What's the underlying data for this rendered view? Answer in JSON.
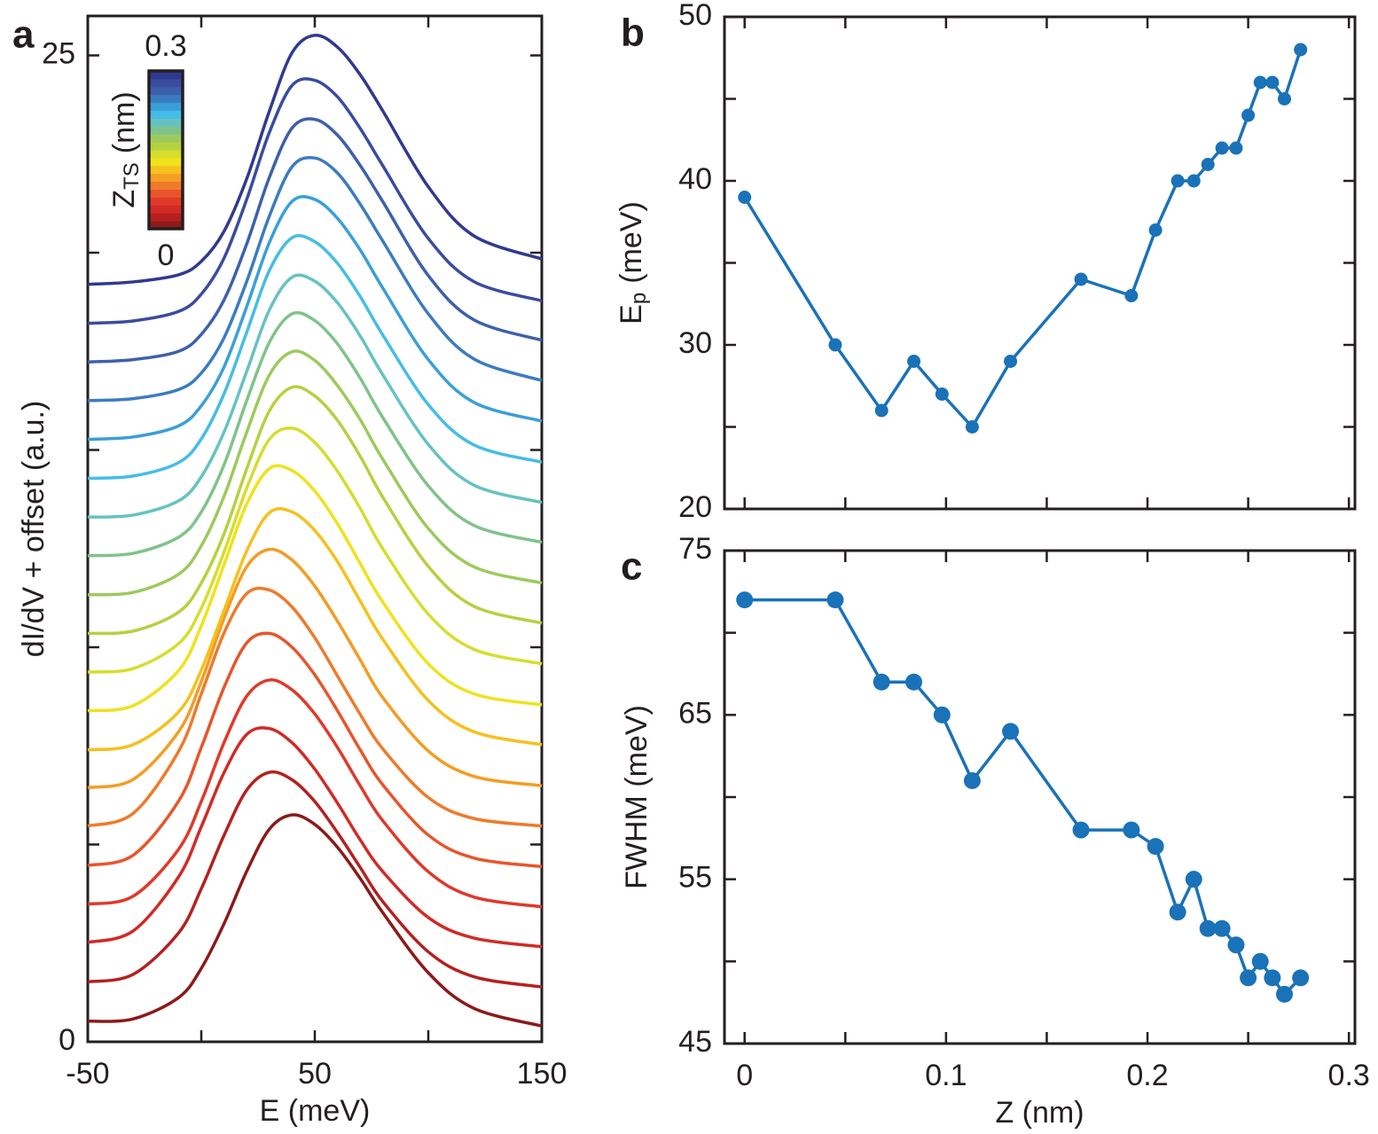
{
  "chart_data": [
    {
      "type": "line",
      "panel_label": "a",
      "xlabel": "E (meV)",
      "ylabel": {
        "text": "dI/dV + offset (a.u.)"
      },
      "x": [
        -50,
        -30,
        -10,
        0,
        10,
        20,
        30,
        40,
        50,
        60,
        70,
        80,
        100,
        120,
        150
      ],
      "xlim": [
        -50,
        150
      ],
      "xticks": [
        -50,
        50,
        150
      ],
      "xtick_marks": [
        0,
        100
      ],
      "ylim": [
        0,
        26
      ],
      "yticks": [
        0,
        25
      ],
      "ytick_marks": [
        5,
        10,
        15,
        20
      ],
      "colorbar": {
        "lim": [
          0,
          0.3
        ],
        "ticks": [
          0,
          0.3
        ],
        "title": {
          "text": "Z",
          "sub": "TS",
          "rest": "(nm)"
        }
      },
      "series": [
        {
          "color": "#8c1a1a",
          "values": [
            0.52,
            0.58,
            1.12,
            1.86,
            2.99,
            4.32,
            5.39,
            5.75,
            5.51,
            4.93,
            4.14,
            3.27,
            1.75,
            0.85,
            0.4
          ]
        },
        {
          "color": "#b5201f",
          "values": [
            1.52,
            1.71,
            2.76,
            3.88,
            5.23,
            6.38,
            6.83,
            6.64,
            6.09,
            5.3,
            4.42,
            3.55,
            2.28,
            1.65,
            1.39
          ]
        },
        {
          "color": "#d22a26",
          "values": [
            2.52,
            2.81,
            4.18,
            5.45,
            6.82,
            7.79,
            7.94,
            7.58,
            6.91,
            6.05,
            5.12,
            4.31,
            3.15,
            2.63,
            2.41
          ]
        },
        {
          "color": "#e0392a",
          "values": [
            3.49,
            3.69,
            4.88,
            6.09,
            7.58,
            8.76,
            9.17,
            8.92,
            8.31,
            7.46,
            6.49,
            5.6,
            4.31,
            3.67,
            3.42
          ]
        },
        {
          "color": "#e8552a",
          "values": [
            4.47,
            4.73,
            6.1,
            7.46,
            8.98,
            10.11,
            10.35,
            10.0,
            9.3,
            8.39,
            7.4,
            6.51,
            5.24,
            4.66,
            4.44
          ]
        },
        {
          "color": "#ef7a2a",
          "values": [
            5.47,
            5.79,
            7.36,
            8.82,
            10.36,
            11.36,
            11.45,
            11.02,
            10.24,
            9.27,
            8.3,
            7.42,
            6.19,
            5.66,
            5.47
          ]
        },
        {
          "color": "#f59c22",
          "values": [
            6.44,
            6.65,
            7.86,
            9.13,
            10.73,
            12.04,
            12.48,
            12.21,
            11.55,
            10.66,
            9.68,
            8.72,
            7.37,
            6.73,
            6.49
          ]
        },
        {
          "color": "#f5c11e",
          "values": [
            7.4,
            7.53,
            8.36,
            9.42,
            10.93,
            12.44,
            13.41,
            13.43,
            12.96,
            12.17,
            11.17,
            10.2,
            8.65,
            7.86,
            7.53
          ]
        },
        {
          "color": "#f0e21c",
          "values": [
            8.39,
            8.52,
            9.41,
            10.54,
            12.09,
            13.63,
            14.53,
            14.48,
            13.96,
            13.13,
            12.12,
            11.14,
            9.58,
            8.82,
            8.54
          ]
        },
        {
          "color": "#d6dd2e",
          "values": [
            9.37,
            9.46,
            10.09,
            10.99,
            12.41,
            14.03,
            15.27,
            15.55,
            15.19,
            14.46,
            13.52,
            12.49,
            10.84,
            9.95,
            9.58
          ]
        },
        {
          "color": "#b5d13f",
          "values": [
            10.35,
            10.41,
            10.89,
            11.63,
            12.87,
            14.52,
            15.99,
            16.59,
            16.37,
            15.75,
            14.84,
            13.8,
            12.05,
            11.04,
            10.61
          ]
        },
        {
          "color": "#9cca5c",
          "values": [
            11.33,
            11.39,
            11.85,
            12.57,
            13.82,
            15.45,
            16.9,
            17.49,
            17.27,
            16.63,
            15.77,
            14.76,
            13.01,
            12.04,
            11.63
          ]
        },
        {
          "color": "#7fc38a",
          "values": [
            12.32,
            12.38,
            12.79,
            13.43,
            14.62,
            16.25,
            17.73,
            18.45,
            18.28,
            17.69,
            16.82,
            15.82,
            14.09,
            13.09,
            12.66
          ]
        },
        {
          "color": "#66c2c2",
          "values": [
            13.3,
            13.35,
            13.71,
            14.32,
            15.45,
            16.99,
            18.55,
            19.38,
            19.28,
            18.73,
            17.89,
            16.9,
            15.14,
            14.11,
            13.67
          ]
        },
        {
          "color": "#45bde6",
          "values": [
            14.28,
            14.34,
            14.68,
            15.28,
            16.42,
            17.98,
            19.55,
            20.38,
            20.28,
            19.73,
            18.89,
            17.91,
            16.15,
            15.13,
            14.69
          ]
        },
        {
          "color": "#3a9fd8",
          "values": [
            15.27,
            15.33,
            15.61,
            16.12,
            17.1,
            18.63,
            20.26,
            21.3,
            21.35,
            20.87,
            20.07,
            19.1,
            17.29,
            16.21,
            15.73
          ]
        },
        {
          "color": "#3b7cc0",
          "values": [
            16.25,
            16.3,
            16.53,
            16.95,
            17.84,
            19.27,
            20.93,
            22.18,
            22.4,
            22.02,
            21.23,
            20.29,
            18.45,
            17.31,
            16.76
          ]
        },
        {
          "color": "#3d60ac",
          "values": [
            17.23,
            17.29,
            17.5,
            17.93,
            18.8,
            20.22,
            21.91,
            23.16,
            23.38,
            22.98,
            22.21,
            21.29,
            19.42,
            18.3,
            17.78
          ]
        },
        {
          "color": "#3a4c9f",
          "values": [
            18.21,
            18.27,
            18.51,
            18.95,
            19.86,
            21.35,
            23.05,
            24.24,
            24.37,
            23.95,
            23.15,
            22.2,
            20.36,
            19.27,
            18.78
          ]
        },
        {
          "color": "#2f3a8f",
          "values": [
            19.2,
            19.26,
            19.44,
            19.78,
            20.54,
            21.87,
            23.59,
            25.07,
            25.51,
            25.21,
            24.51,
            23.59,
            21.67,
            20.43,
            19.84
          ]
        }
      ]
    },
    {
      "type": "line",
      "panel_label": "b",
      "markers": true,
      "color": "#1a72b8",
      "ylabel": {
        "text": "E",
        "sub": "p",
        "rest": "(meV)"
      },
      "x": [
        0,
        0.045,
        0.068,
        0.084,
        0.098,
        0.113,
        0.132,
        0.167,
        0.192,
        0.204,
        0.215,
        0.223,
        0.23,
        0.237,
        0.244,
        0.25,
        0.256,
        0.262,
        0.268,
        0.276
      ],
      "values": [
        39,
        30,
        26,
        29,
        27,
        25,
        29,
        34,
        33,
        37,
        40,
        40,
        41,
        42,
        42,
        44,
        46,
        46,
        45,
        48
      ],
      "xlim": [
        -0.01,
        0.303
      ],
      "xtick_marks": [
        0,
        0.05,
        0.1,
        0.15,
        0.2,
        0.25,
        0.3
      ],
      "ylim": [
        20,
        50
      ],
      "yticks": [
        20,
        30,
        40,
        50
      ],
      "ytick_marks": [
        25,
        35,
        45
      ]
    },
    {
      "type": "line",
      "panel_label": "c",
      "markers": true,
      "color": "#1a72b8",
      "xlabel": "Z (nm)",
      "ylabel": {
        "text": "FWHM (meV)"
      },
      "x": [
        0,
        0.045,
        0.068,
        0.084,
        0.098,
        0.113,
        0.132,
        0.167,
        0.192,
        0.204,
        0.215,
        0.223,
        0.23,
        0.237,
        0.244,
        0.25,
        0.256,
        0.262,
        0.268,
        0.276
      ],
      "values": [
        72,
        72,
        67,
        67,
        65,
        61,
        64,
        58,
        58,
        57,
        53,
        55,
        52,
        52,
        51,
        49,
        50,
        49,
        48,
        49
      ],
      "xlim": [
        -0.01,
        0.303
      ],
      "xticks": [
        0,
        0.1,
        0.2,
        0.3
      ],
      "xtick_marks": [
        0.05,
        0.15,
        0.25
      ],
      "ylim": [
        45,
        75
      ],
      "yticks": [
        45,
        55,
        65,
        75
      ],
      "ytick_marks": [
        50,
        60,
        70
      ]
    }
  ]
}
